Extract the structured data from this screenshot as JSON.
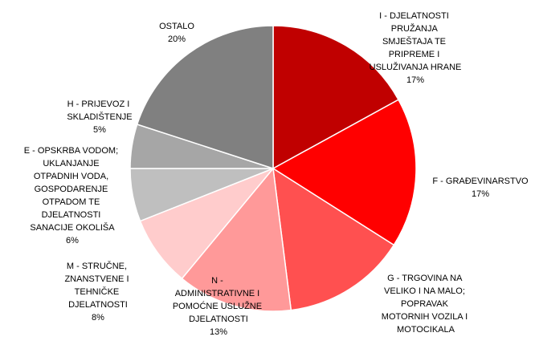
{
  "chart_data": {
    "type": "pie",
    "categories": [
      "I - DJELATNOSTI PRUŽANJA SMJEŠTAJA TE PRIPREME I USLUŽIVANJA HRANE",
      "F - GRAĐEVINARSTVO",
      "G - TRGOVINA NA VELIKO I NA MALO; POPRAVAK MOTORNIH VOZILA I MOTOCIKALA",
      "N - ADMINISTRATIVNE I POMOĆNE USLUŽNE DJELATNOSTI",
      "M - STRUČNE, ZNANSTVENE I TEHNIČKE DJELATNOSTI",
      "E - OPSKRBA VODOM; UKLANJANJE OTPADNIH VODA, GOSPODARENJE OTPADOM TE DJELATNOSTI SANACIJE OKOLIŠA",
      "H - PRIJEVOZ I SKLADIŠTENJE",
      "OSTALO"
    ],
    "values": [
      17,
      17,
      14,
      13,
      8,
      6,
      5,
      20
    ],
    "value_labels": [
      "17%",
      "17%",
      null,
      "13%",
      "8%",
      "6%",
      "5%",
      "20%"
    ],
    "colors": [
      "#c00000",
      "#ff0000",
      "#ff5050",
      "#ff9999",
      "#ffcccc",
      "#bfbfbf",
      "#a6a6a6",
      "#808080"
    ]
  }
}
